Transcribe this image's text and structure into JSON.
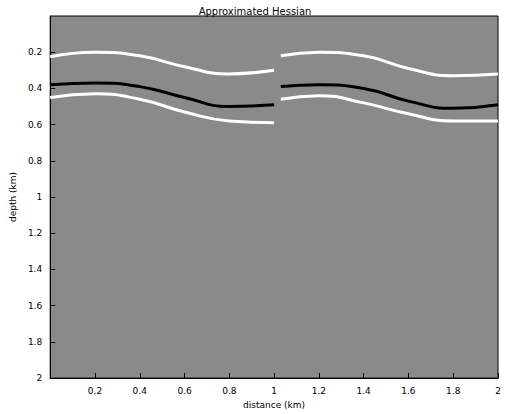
{
  "chart_data": {
    "type": "line",
    "title": "Approximated Hessian",
    "x_label": "distance (km)",
    "y_label": "depth (km)",
    "x": [
      0,
      0.2,
      0.4,
      0.6,
      0.8,
      1.0,
      1.01,
      1.03,
      1.2,
      1.4,
      1.6,
      1.8,
      2.0
    ],
    "series": [
      {
        "color": "#ffffff",
        "line_style": "solid",
        "values": [
          0.225,
          0.2,
          0.22,
          0.28,
          0.32,
          0.3,
          null,
          0.22,
          0.2,
          0.22,
          0.29,
          0.33,
          0.32
        ]
      },
      {
        "color": "#000000",
        "line_style": "solid",
        "values": [
          0.38,
          0.37,
          0.39,
          0.45,
          0.5,
          0.49,
          null,
          0.39,
          0.38,
          0.4,
          0.47,
          0.51,
          0.49
        ]
      },
      {
        "color": "#ffffff",
        "line_style": "solid",
        "values": [
          0.45,
          0.43,
          0.46,
          0.53,
          0.58,
          0.59,
          null,
          0.46,
          0.44,
          0.48,
          0.54,
          0.58,
          0.58
        ]
      }
    ],
    "xlim": [
      0,
      2
    ],
    "ylim": [
      0,
      2
    ],
    "xticks": [
      0.2,
      0.4,
      0.6,
      0.8,
      1,
      1.2,
      1.4,
      1.6,
      1.8,
      2
    ],
    "yticks": [
      0.2,
      0.4,
      0.6,
      0.8,
      1,
      1.2,
      1.4,
      1.6,
      1.8,
      2
    ],
    "grid": false
  }
}
